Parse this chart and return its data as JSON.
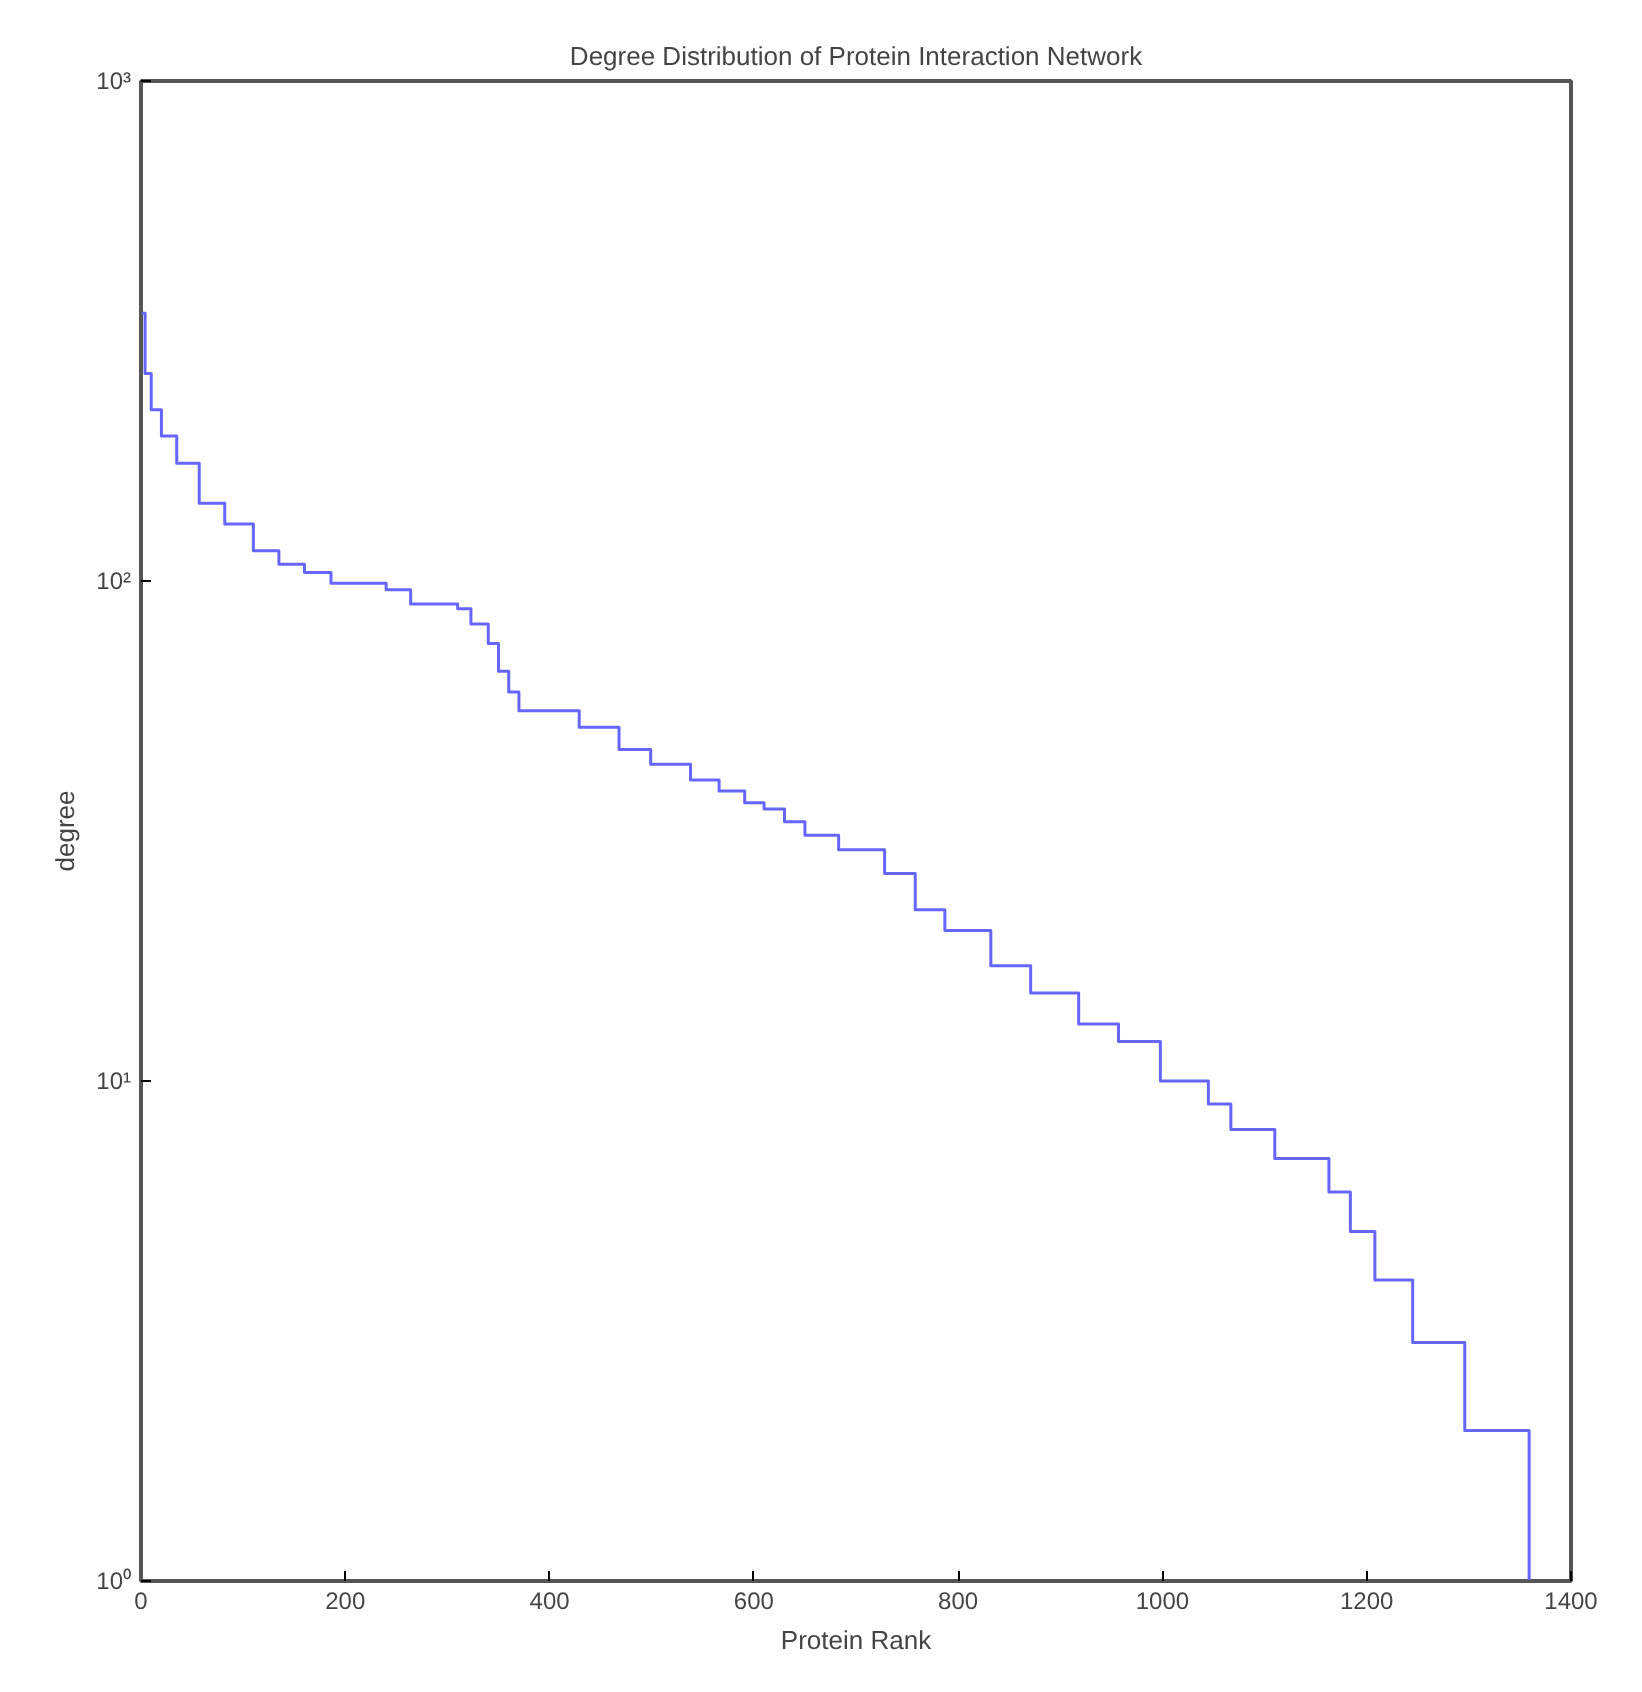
{
  "chart_data": {
    "type": "step",
    "title": "Degree Distribution of Protein Interaction Network",
    "xlabel": "Protein Rank",
    "ylabel": "degree",
    "log": "y",
    "grid": false,
    "xlim": [
      0,
      1400
    ],
    "xticks": [
      0,
      200,
      400,
      600,
      800,
      1000,
      1200,
      1400
    ],
    "ylim": [
      1,
      1000
    ],
    "yticks": [
      {
        "value": 1,
        "label": "10⁰"
      },
      {
        "value": 10,
        "label": "10¹"
      },
      {
        "value": 100,
        "label": "10²"
      },
      {
        "value": 1000,
        "label": "10³"
      }
    ],
    "x": [
      0,
      4,
      10,
      20,
      35,
      57,
      82,
      110,
      135,
      160,
      186,
      240,
      264,
      310,
      323,
      340,
      350,
      360,
      370,
      429,
      468,
      499,
      538,
      566,
      591,
      610,
      630,
      650,
      683,
      728,
      758,
      787,
      832,
      871,
      918,
      957,
      998,
      1045,
      1067,
      1110,
      1163,
      1184,
      1208,
      1245,
      1296,
      1359,
      1360
    ],
    "series": [
      {
        "color": "#6666ff",
        "values": [
          343,
          260,
          220,
          195,
          172,
          143,
          130,
          115,
          108,
          104,
          99,
          96,
          90,
          88,
          82,
          75,
          66,
          60,
          55,
          51,
          46,
          43,
          40,
          38,
          36,
          35,
          33,
          31,
          29,
          26,
          22,
          20,
          17,
          15,
          13,
          12,
          10,
          9,
          8,
          7,
          6,
          5,
          4,
          3,
          2,
          1,
          1
        ]
      }
    ]
  }
}
